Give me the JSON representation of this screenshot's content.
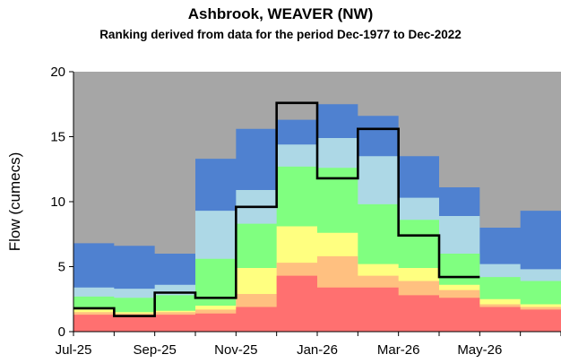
{
  "chart_data": {
    "type": "area",
    "title": "Ashbrook, WEAVER (NW)",
    "subtitle": "Ranking derived from data for the period Dec-1977 to Dec-2022",
    "xlabel": "",
    "ylabel": "Flow (cumecs)",
    "ylim": [
      0,
      20
    ],
    "yticks": [
      "0",
      "5",
      "10",
      "15",
      "20"
    ],
    "xtick_labels": [
      "Jul-25",
      "Sep-25",
      "Nov-25",
      "Jan-26",
      "Mar-26",
      "May-26"
    ],
    "months": [
      "Jul-25",
      "Aug-25",
      "Sep-25",
      "Oct-25",
      "Nov-25",
      "Dec-25",
      "Jan-26",
      "Feb-26",
      "Mar-26",
      "Apr-26",
      "May-26",
      "Jun-26"
    ],
    "background_color": "#a6a6a6",
    "bands": [
      {
        "color": "#ff7070",
        "upper": [
          1.3,
          1.2,
          1.3,
          1.4,
          1.9,
          4.3,
          3.4,
          3.4,
          2.8,
          2.6,
          1.9,
          1.7
        ]
      },
      {
        "color": "#ffc080",
        "upper": [
          1.5,
          1.4,
          1.5,
          1.7,
          2.9,
          5.3,
          5.8,
          4.3,
          3.9,
          3.2,
          2.1,
          1.9
        ]
      },
      {
        "color": "#ffff80",
        "upper": [
          1.7,
          1.5,
          1.6,
          2.0,
          4.9,
          8.1,
          7.6,
          5.2,
          4.9,
          3.6,
          2.5,
          2.1
        ]
      },
      {
        "color": "#80ff80",
        "upper": [
          2.7,
          2.6,
          2.8,
          5.6,
          8.3,
          12.7,
          12.6,
          9.8,
          8.6,
          6.0,
          4.2,
          3.9
        ]
      },
      {
        "color": "#add8e6",
        "upper": [
          3.4,
          3.3,
          3.6,
          9.3,
          10.9,
          14.4,
          14.9,
          13.5,
          10.3,
          8.9,
          5.2,
          4.8
        ]
      },
      {
        "color": "#4f81d0",
        "upper": [
          6.8,
          6.6,
          6.0,
          13.3,
          15.6,
          16.3,
          17.5,
          16.6,
          13.5,
          11.1,
          8.0,
          9.3
        ]
      }
    ],
    "series": [
      {
        "values": [
          1.8,
          1.2,
          3.0,
          2.6,
          9.6,
          17.6,
          11.8,
          15.6,
          7.4,
          4.2
        ]
      }
    ]
  }
}
